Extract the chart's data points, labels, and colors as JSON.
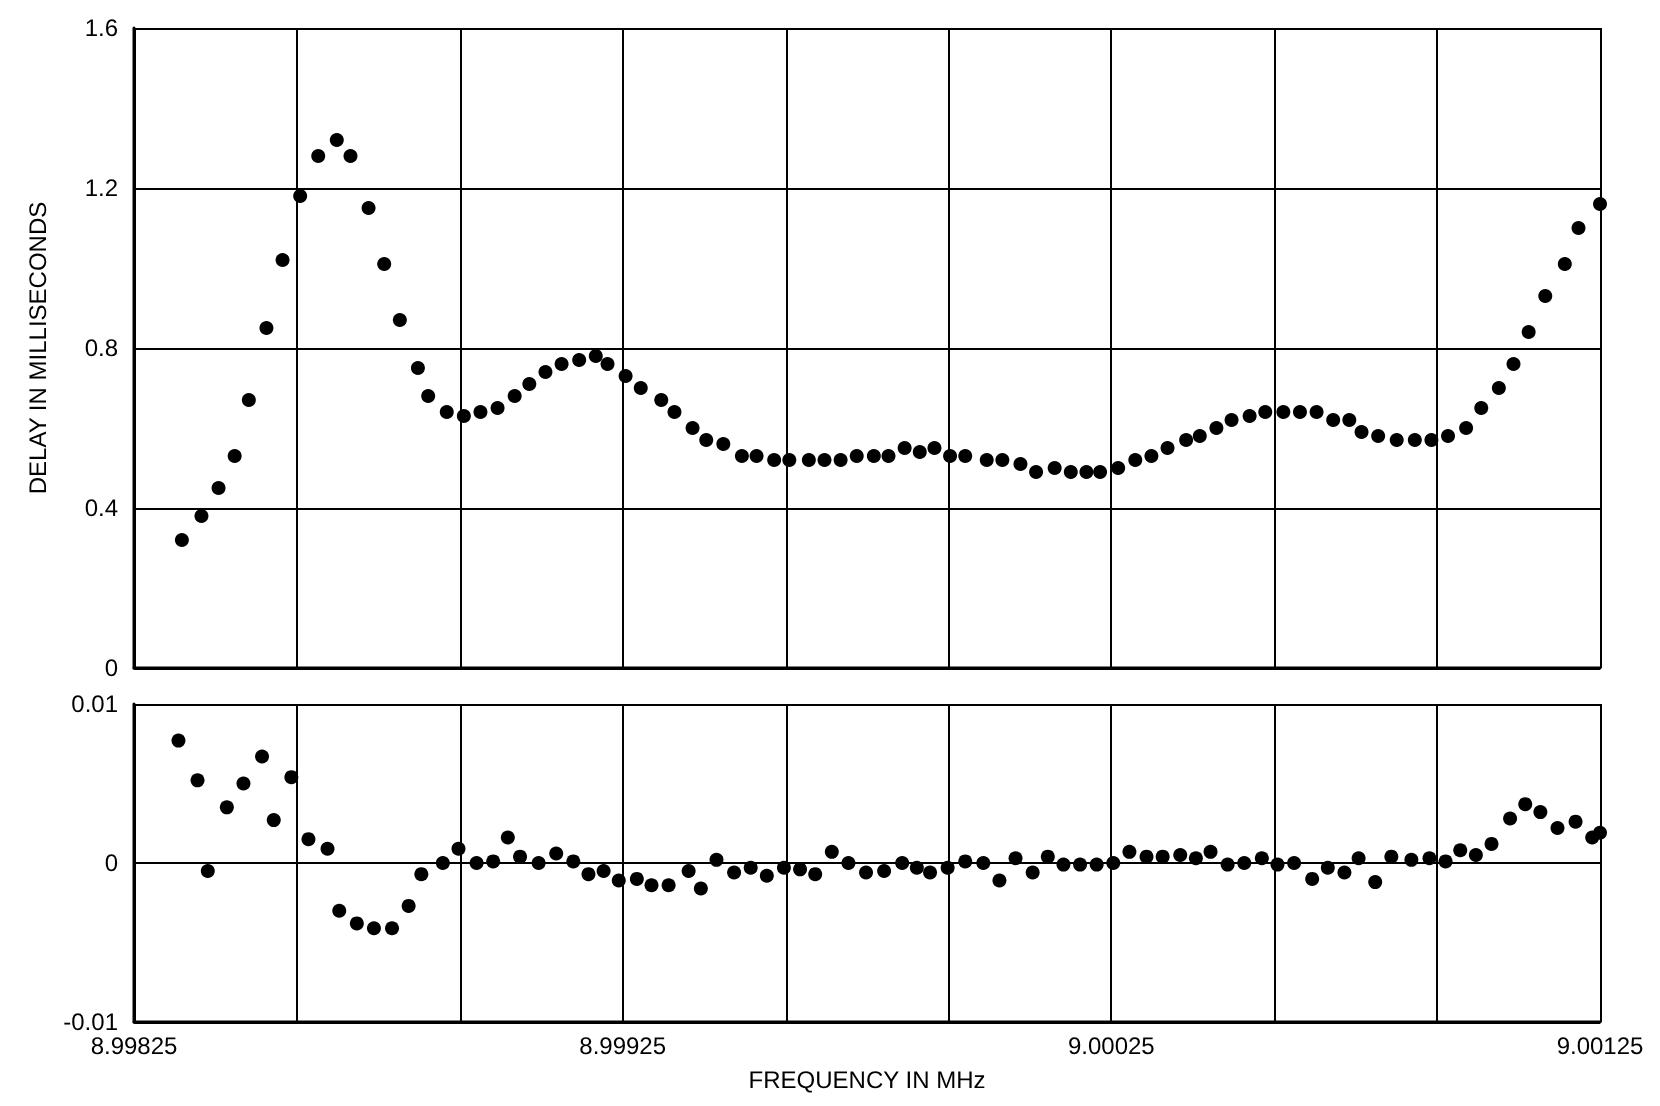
{
  "chart_data": [
    {
      "type": "scatter",
      "ylabel": "DELAY IN MILLISECONDS",
      "marker": "circle",
      "grid": true,
      "tick_labels": "y",
      "xlim": [
        8.99825,
        9.00125
      ],
      "xticks": [
        {
          "value": 8.99825,
          "label": null
        },
        {
          "value": 8.998583,
          "label": null
        },
        {
          "value": 8.998917,
          "label": null
        },
        {
          "value": 8.99925,
          "label": null
        },
        {
          "value": 8.999583,
          "label": null
        },
        {
          "value": 8.999917,
          "label": null
        },
        {
          "value": 9.00025,
          "label": null
        },
        {
          "value": 9.000583,
          "label": null
        },
        {
          "value": 9.000917,
          "label": null
        },
        {
          "value": 9.00125,
          "label": null
        }
      ],
      "ylim": [
        0,
        1.6
      ],
      "yticks": [
        0,
        0.4,
        0.8,
        1.2,
        1.6
      ],
      "series": [
        {
          "color": "#000000",
          "x": [
            8.998348,
            8.998388,
            8.998423,
            8.998456,
            8.998485,
            8.998521,
            8.998554,
            8.99859,
            8.998627,
            8.998665,
            8.998693,
            8.99873,
            8.998762,
            8.998794,
            8.998831,
            8.998852,
            8.99889,
            8.998925,
            8.998959,
            8.998994,
            8.999029,
            8.999059,
            8.999092,
            8.999125,
            8.999161,
            8.999195,
            8.999219,
            8.999256,
            8.999287,
            8.999329,
            8.999356,
            8.999393,
            8.999421,
            8.999456,
            8.999494,
            8.999524,
            8.99956,
            8.999591,
            8.999631,
            8.999663,
            8.999696,
            8.999729,
            8.999764,
            8.999794,
            8.999827,
            8.999858,
            8.999888,
            8.99992,
            8.999951,
            8.999995,
            9.000027,
            9.000064,
            9.000096,
            9.000134,
            9.000167,
            9.000199,
            9.000227,
            9.000264,
            9.000299,
            9.000332,
            9.000365,
            9.000403,
            9.000431,
            9.000465,
            9.000496,
            9.000533,
            9.000565,
            9.000602,
            9.000636,
            9.00067,
            9.000704,
            9.000737,
            9.000762,
            9.000796,
            9.000834,
            9.000871,
            9.000905,
            9.000939,
            9.000976,
            9.001007,
            9.001043,
            9.001073,
            9.001104,
            9.001138,
            9.001178,
            9.001206,
            9.00125
          ],
          "values": [
            0.32,
            0.38,
            0.45,
            0.53,
            0.67,
            0.85,
            1.02,
            1.18,
            1.28,
            1.32,
            1.28,
            1.15,
            1.01,
            0.87,
            0.75,
            0.68,
            0.64,
            0.63,
            0.64,
            0.65,
            0.68,
            0.71,
            0.74,
            0.76,
            0.77,
            0.78,
            0.76,
            0.73,
            0.7,
            0.67,
            0.64,
            0.6,
            0.57,
            0.56,
            0.53,
            0.53,
            0.52,
            0.52,
            0.52,
            0.52,
            0.52,
            0.53,
            0.53,
            0.53,
            0.55,
            0.54,
            0.55,
            0.53,
            0.53,
            0.52,
            0.52,
            0.51,
            0.49,
            0.5,
            0.49,
            0.49,
            0.49,
            0.5,
            0.52,
            0.53,
            0.55,
            0.57,
            0.58,
            0.6,
            0.62,
            0.63,
            0.64,
            0.64,
            0.64,
            0.64,
            0.62,
            0.62,
            0.59,
            0.58,
            0.57,
            0.57,
            0.57,
            0.58,
            0.6,
            0.65,
            0.7,
            0.76,
            0.84,
            0.93,
            1.01,
            1.1,
            1.16
          ]
        }
      ]
    },
    {
      "type": "scatter",
      "xlabel": "FREQUENCY IN MHz",
      "marker": "circle",
      "grid": true,
      "xlim": [
        8.99825,
        9.00125
      ],
      "xticks": [
        {
          "value": 8.99825,
          "label": "8.99825"
        },
        {
          "value": 8.998583,
          "label": null
        },
        {
          "value": 8.998917,
          "label": null
        },
        {
          "value": 8.99925,
          "label": "8.99925"
        },
        {
          "value": 8.999583,
          "label": null
        },
        {
          "value": 8.999917,
          "label": null
        },
        {
          "value": 9.00025,
          "label": "9.00025"
        },
        {
          "value": 9.000583,
          "label": null
        },
        {
          "value": 9.000917,
          "label": null
        },
        {
          "value": 9.00125,
          "label": "9.00125"
        }
      ],
      "ylim": [
        -0.01,
        0.01
      ],
      "yticks": [
        -0.01,
        0,
        0.01
      ],
      "series": [
        {
          "color": "#000000",
          "x": [
            8.998341,
            8.99838,
            8.998401,
            8.99844,
            8.998474,
            8.998512,
            8.998536,
            8.998572,
            8.998607,
            8.998646,
            8.99867,
            8.998706,
            8.998741,
            8.998778,
            8.998812,
            8.998838,
            8.998882,
            8.998914,
            8.998951,
            8.998985,
            8.999015,
            8.99904,
            8.999078,
            8.999114,
            8.999149,
            8.99918,
            8.999211,
            8.999242,
            8.999279,
            8.999309,
            8.999344,
            8.999385,
            8.99941,
            8.999442,
            8.999478,
            8.999512,
            8.999545,
            8.99958,
            8.999613,
            8.999644,
            8.999678,
            8.999712,
            8.999748,
            8.999785,
            8.999822,
            8.999852,
            8.999879,
            8.999915,
            8.999951,
            8.999988,
            9.000021,
            9.000054,
            9.000089,
            9.00012,
            9.000152,
            9.000186,
            9.00022,
            9.000254,
            9.000287,
            9.000322,
            9.000355,
            9.000391,
            9.000423,
            9.000453,
            9.000488,
            9.000522,
            9.000558,
            9.00059,
            9.000624,
            9.000661,
            9.000693,
            9.000727,
            9.000756,
            9.00079,
            9.000823,
            9.000864,
            9.000901,
            9.000934,
            9.000964,
            9.000996,
            9.001028,
            9.001066,
            9.001097,
            9.001128,
            9.001163,
            9.0012,
            9.001234,
            9.00125
          ],
          "values": [
            0.0077,
            0.0052,
            -0.0005,
            0.0035,
            0.005,
            0.0067,
            0.0027,
            0.0054,
            0.0015,
            0.0009,
            -0.003,
            -0.0038,
            -0.0041,
            -0.0041,
            -0.0027,
            -0.0007,
            0,
            0.0009,
            0,
            0.0001,
            0.0016,
            0.0004,
            0,
            0.0006,
            0.0001,
            -0.0007,
            -0.0005,
            -0.0011,
            -0.001,
            -0.0014,
            -0.0014,
            -0.0005,
            -0.0016,
            0.0002,
            -0.0006,
            -0.0003,
            -0.0008,
            -0.0003,
            -0.0004,
            -0.0007,
            0.0007,
            0,
            -0.0006,
            -0.0005,
            0,
            -0.0003,
            -0.0006,
            -0.0003,
            0.0001,
            0,
            -0.0011,
            0.0003,
            -0.0006,
            0.0004,
            -0.0001,
            -0.0001,
            -0.0001,
            0,
            0.0007,
            0.0004,
            0.0004,
            0.0005,
            0.0003,
            0.0007,
            -0.0001,
            0,
            0.0003,
            -0.0001,
            0,
            -0.001,
            -0.0003,
            -0.0006,
            0.0003,
            -0.0012,
            0.0004,
            0.0002,
            0.0003,
            0.0001,
            0.0008,
            0.0005,
            0.0012,
            0.0028,
            0.0037,
            0.0032,
            0.0022,
            0.0026,
            0.0016,
            0.0019
          ]
        }
      ]
    }
  ]
}
